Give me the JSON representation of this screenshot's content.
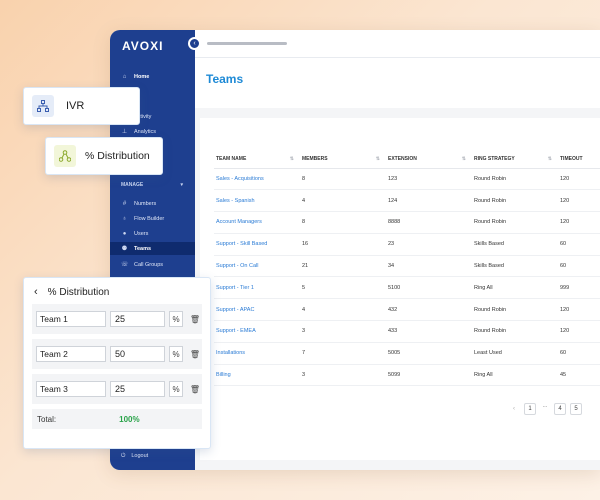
{
  "app": {
    "logo": "AVOXI",
    "collapse_icon": "chevron-left-icon"
  },
  "sidebar": {
    "home": "Home",
    "activity": "Activity",
    "analytics": "Analytics",
    "manage_section": "MANAGE",
    "items": [
      "Numbers",
      "Flow Builder",
      "Users",
      "Teams",
      "Call Groups"
    ],
    "active_item": "Teams",
    "logout": "Logout"
  },
  "page": {
    "title": "Teams"
  },
  "table": {
    "headers": [
      "TEAM NAME",
      "MEMBERS",
      "EXTENSION",
      "RING STRATEGY",
      "TIMEOUT"
    ],
    "rows": [
      [
        "Sales - Acquisitions",
        "8",
        "123",
        "Round Robin",
        "120"
      ],
      [
        "Sales - Spanish",
        "4",
        "124",
        "Round Robin",
        "120"
      ],
      [
        "Account Managers",
        "8",
        "8888",
        "Round Robin",
        "120"
      ],
      [
        "Support - Skill Based",
        "16",
        "23",
        "Skills Based",
        "60"
      ],
      [
        "Support - On Call",
        "21",
        "34",
        "Skills Based",
        "60"
      ],
      [
        "Support - Tier 1",
        "5",
        "5100",
        "Ring All",
        "999"
      ],
      [
        "Support - APAC",
        "4",
        "432",
        "Round Robin",
        "120"
      ],
      [
        "Support - EMEA",
        "3",
        "433",
        "Round Robin",
        "120"
      ],
      [
        "Installations",
        "7",
        "5005",
        "Least Used",
        "60"
      ],
      [
        "Billing",
        "3",
        "5099",
        "Ring All",
        "45"
      ]
    ]
  },
  "pagination": {
    "pages": [
      "1",
      "4",
      "5"
    ],
    "ellipsis": "..."
  },
  "floating": {
    "ivr_label": "IVR",
    "distribution_label": "% Distribution"
  },
  "distribution_panel": {
    "title": "% Distribution",
    "teams": [
      {
        "name": "Team 1",
        "value": "25"
      },
      {
        "name": "Team 2",
        "value": "50"
      },
      {
        "name": "Team 3",
        "value": "25"
      }
    ],
    "total_label": "Total:",
    "total_value": "100%",
    "percent_symbol": "%"
  },
  "colors": {
    "sidebar": "#1e3f8f",
    "title": "#1e8ad6",
    "link": "#2a7bd5",
    "total": "#2aa34a"
  }
}
